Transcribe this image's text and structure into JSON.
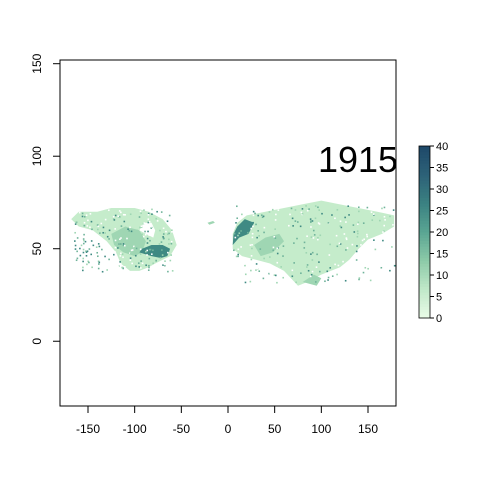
{
  "map": {
    "year_label": "1915",
    "x_axis": {
      "ticks": [
        -150,
        -100,
        -50,
        0,
        50,
        100,
        150
      ],
      "range": [
        -180,
        180
      ]
    },
    "y_axis": {
      "ticks": [
        0,
        50,
        100,
        150
      ],
      "range": [
        -35,
        152
      ]
    },
    "colorbar": {
      "ticks": [
        0,
        5,
        10,
        15,
        20,
        25,
        30,
        35,
        40
      ],
      "range": [
        0,
        40
      ],
      "colors": [
        "#e8fbe6",
        "#bfe8c8",
        "#8ccaa8",
        "#5aa593",
        "#3b8282",
        "#2d6278",
        "#1f4a6a"
      ]
    },
    "land_colors": {
      "light": "#c5eccb",
      "mid": "#9fd6b3",
      "dark": "#6fb39a",
      "darker": "#3f8a83"
    }
  }
}
